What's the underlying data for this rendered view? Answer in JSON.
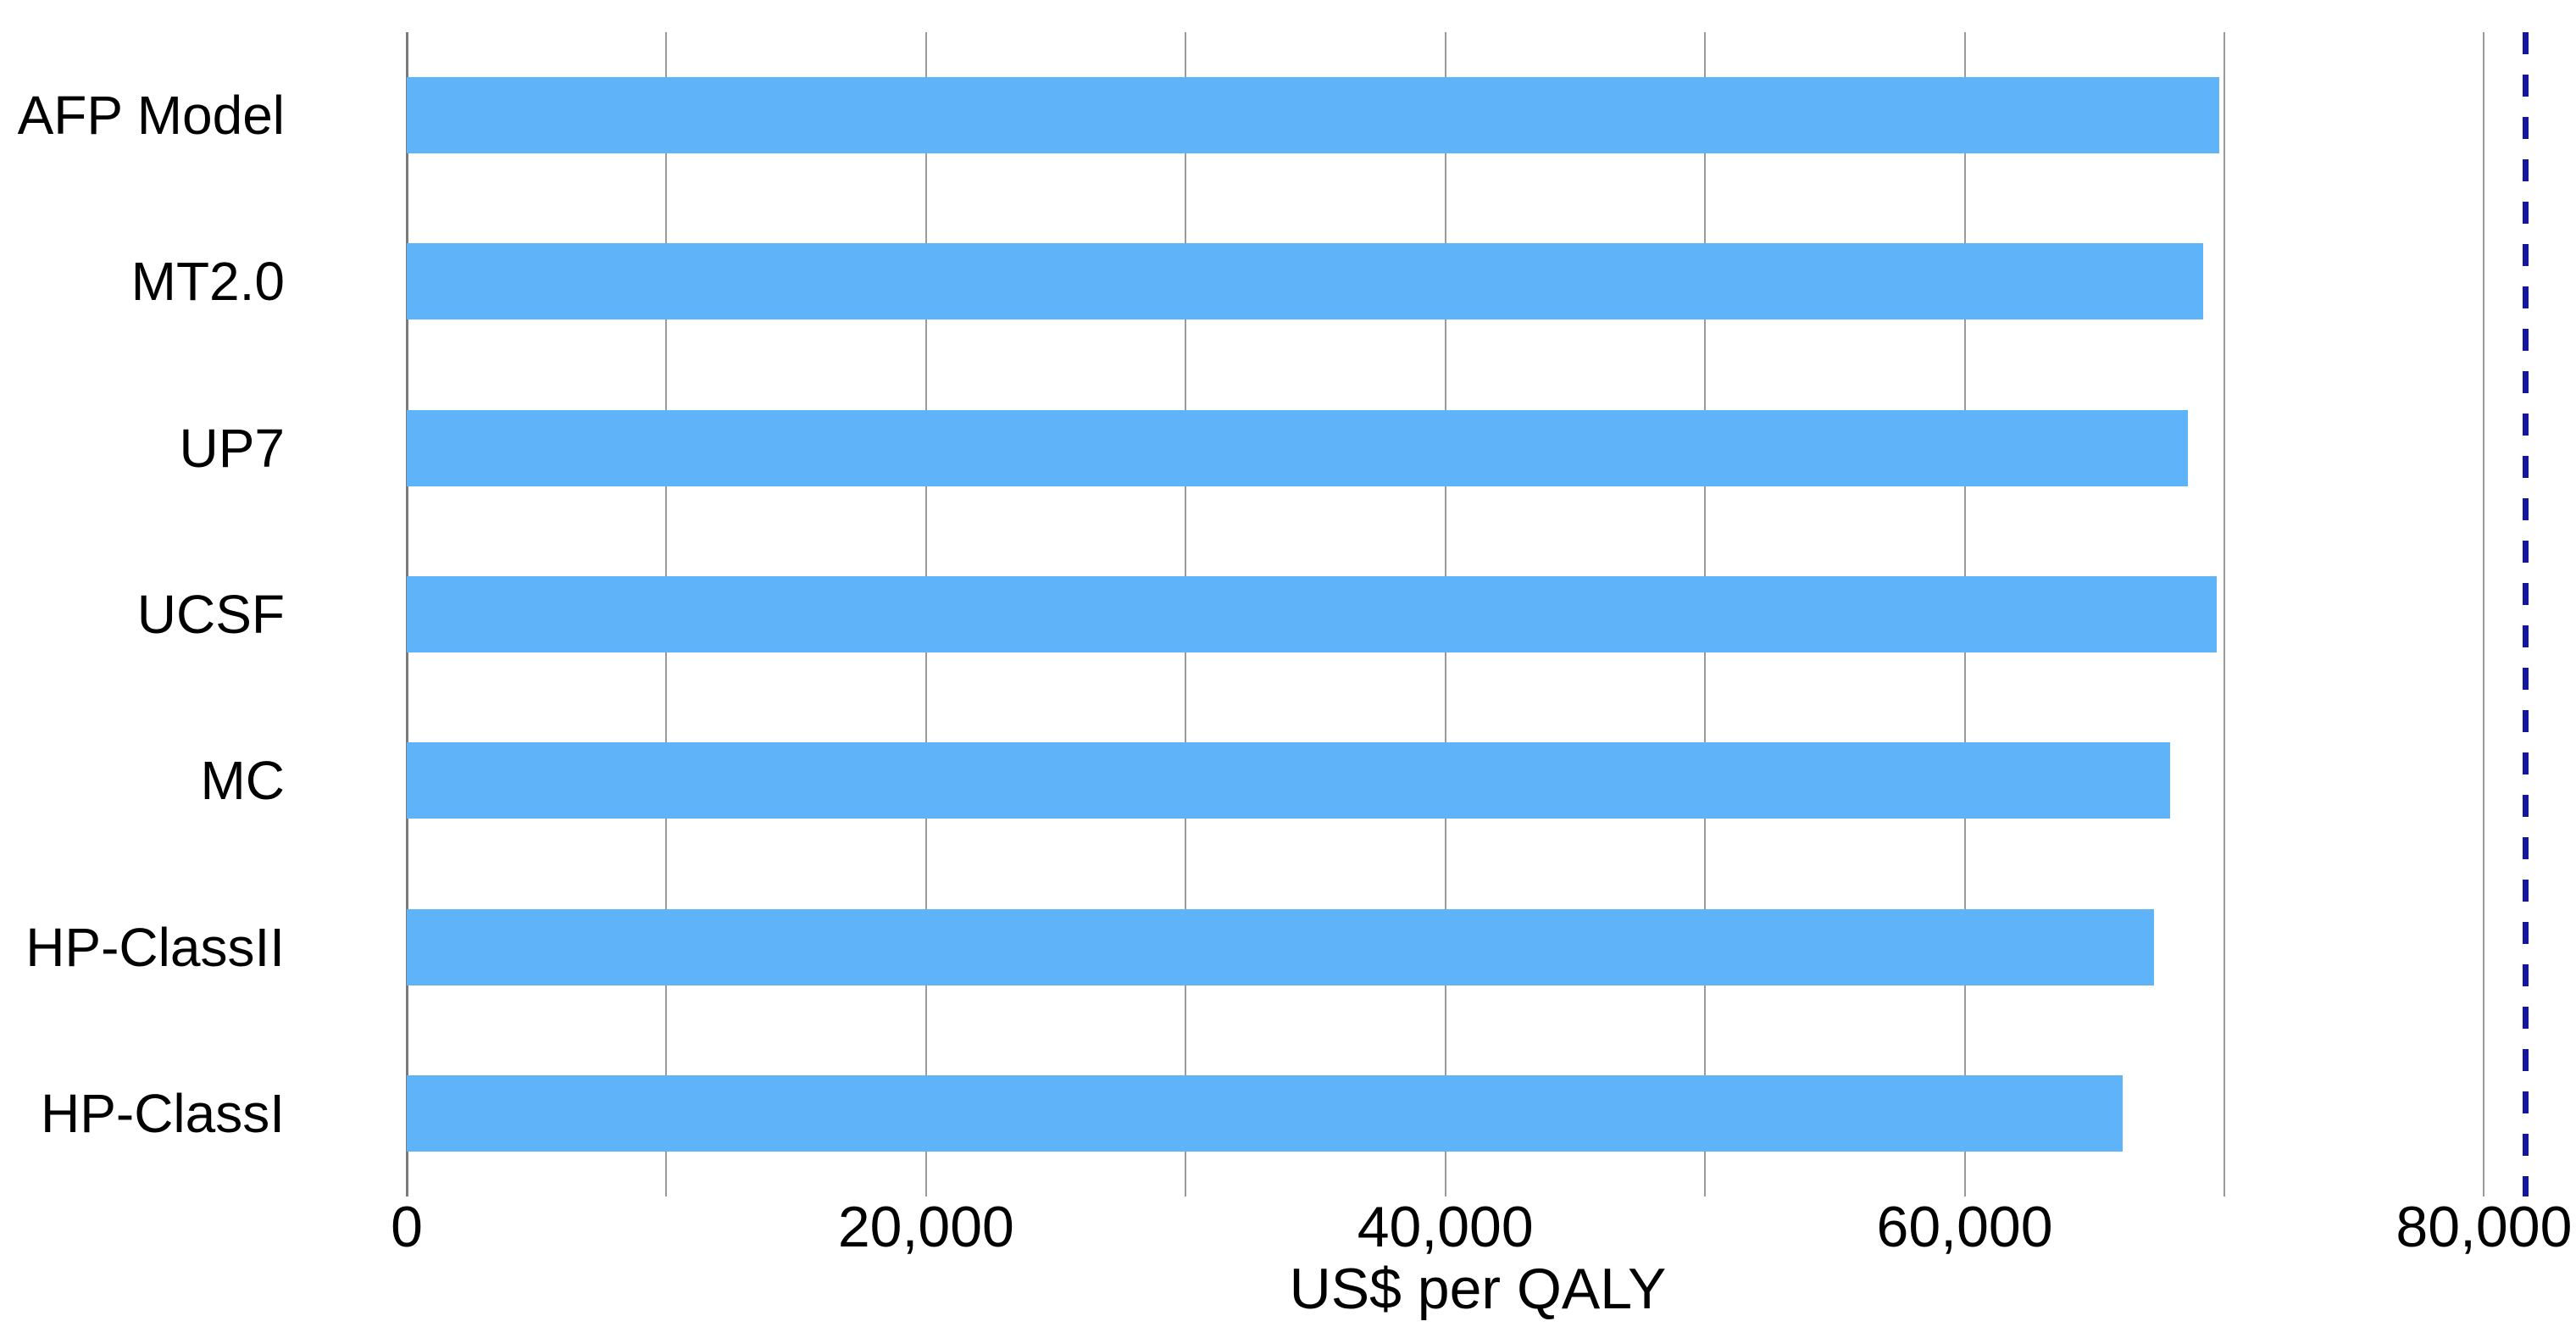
{
  "chart_data": {
    "type": "bar",
    "orientation": "horizontal",
    "title": "",
    "xlabel": "US$ per QALY",
    "ylabel": "",
    "categories": [
      "AFP Model",
      "MT2.0",
      "UP7",
      "UCSF",
      "MC",
      "HP-ClassII",
      "HP-ClassI"
    ],
    "values": [
      69800,
      69200,
      68600,
      69700,
      67900,
      67300,
      66100
    ],
    "x_axis": {
      "min": 0,
      "max": 82500,
      "gridline_interval": 10000,
      "ticks": [
        {
          "value": 0,
          "label": "0"
        },
        {
          "value": 20000,
          "label": "20,000"
        },
        {
          "value": 40000,
          "label": "40,000"
        },
        {
          "value": 60000,
          "label": "60,000"
        },
        {
          "value": 80000,
          "label": "80,000"
        }
      ]
    },
    "reference_line": {
      "value": 81600,
      "style": "dashed",
      "color": "#16169C"
    },
    "colors": {
      "bar": "#5FB3F9",
      "gridline": "#9A9A9A",
      "axis_line": "#7B7B7B"
    },
    "legend": "none",
    "grid": "vertical-major"
  }
}
